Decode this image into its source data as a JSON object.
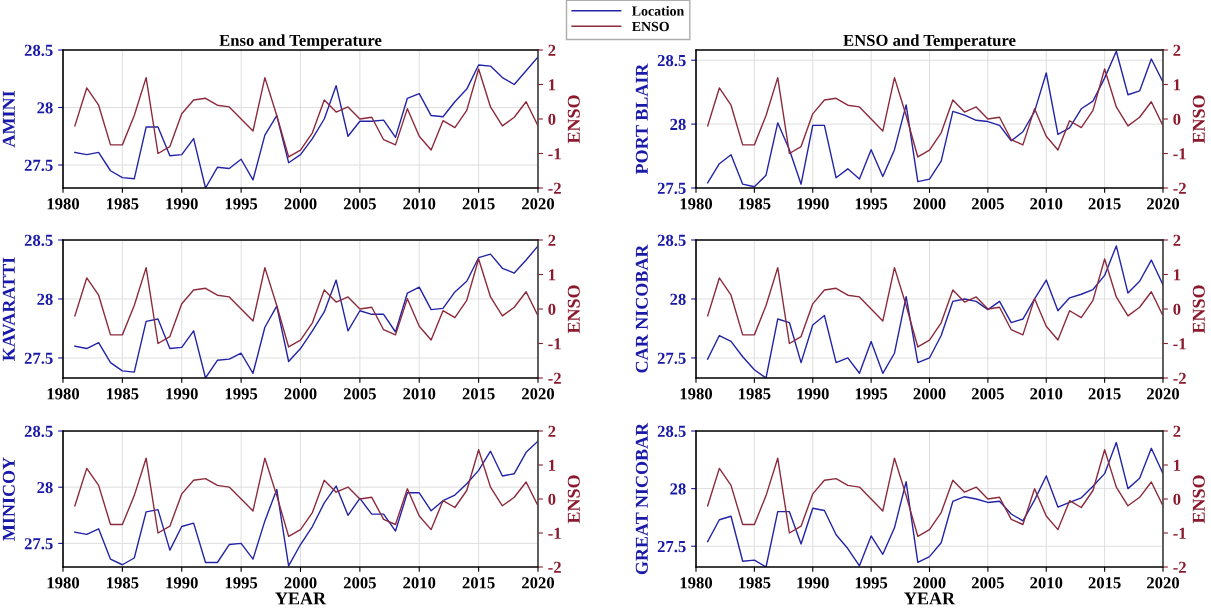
{
  "chart_data": [
    {
      "type": "line",
      "title": "Enso and Temperature",
      "ylabel": "AMINI",
      "y2label": "ENSO",
      "legend": "top right",
      "grid": true,
      "x": [
        1981,
        1982,
        1983,
        1984,
        1985,
        1986,
        1987,
        1988,
        1989,
        1990,
        1991,
        1992,
        1993,
        1994,
        1995,
        1996,
        1997,
        1998,
        1999,
        2000,
        2001,
        2002,
        2003,
        2004,
        2005,
        2006,
        2007,
        2008,
        2009,
        2010,
        2011,
        2012,
        2013,
        2014,
        2015,
        2016,
        2017,
        2018,
        2019,
        2020
      ],
      "xlim": [
        1980,
        2020
      ],
      "xticks": [
        1980,
        1985,
        1990,
        1995,
        2000,
        2005,
        2010,
        2015,
        2020
      ],
      "ylim": [
        27.3,
        28.5
      ],
      "yticks": [
        27.5,
        28,
        28.5
      ],
      "y2lim": [
        -2,
        2
      ],
      "y2ticks": [
        -2,
        -1,
        0,
        1,
        2
      ],
      "series": [
        {
          "name": "Location",
          "color": "#2323a8",
          "values": [
            27.61,
            27.59,
            27.61,
            27.45,
            27.39,
            27.38,
            27.83,
            27.83,
            27.58,
            27.59,
            27.73,
            27.3,
            27.48,
            27.47,
            27.55,
            27.37,
            27.76,
            27.93,
            27.52,
            27.59,
            27.73,
            27.9,
            28.19,
            27.75,
            27.88,
            27.88,
            27.89,
            27.74,
            28.08,
            28.12,
            27.93,
            27.92,
            28.05,
            28.16,
            28.37,
            28.36,
            28.26,
            28.2,
            28.32,
            28.44
          ]
        },
        {
          "name": "ENSO",
          "color": "#8b2a3c",
          "axis": "y2",
          "values": [
            -0.2,
            0.9,
            0.4,
            -0.75,
            -0.75,
            0.1,
            1.2,
            -1.0,
            -0.8,
            0.15,
            0.55,
            0.6,
            0.4,
            0.35,
            0.0,
            -0.35,
            1.2,
            0.1,
            -1.1,
            -0.9,
            -0.4,
            0.55,
            0.2,
            0.35,
            0.0,
            0.05,
            -0.6,
            -0.75,
            0.3,
            -0.5,
            -0.9,
            -0.05,
            -0.25,
            0.25,
            1.45,
            0.35,
            -0.2,
            0.05,
            0.5,
            -0.2
          ]
        }
      ]
    },
    {
      "type": "line",
      "title": "ENSO and Temperature",
      "ylabel": "PORT BLAIR",
      "y2label": "ENSO",
      "grid": true,
      "x": [
        1981,
        1982,
        1983,
        1984,
        1985,
        1986,
        1987,
        1988,
        1989,
        1990,
        1991,
        1992,
        1993,
        1994,
        1995,
        1996,
        1997,
        1998,
        1999,
        2000,
        2001,
        2002,
        2003,
        2004,
        2005,
        2006,
        2007,
        2008,
        2009,
        2010,
        2011,
        2012,
        2013,
        2014,
        2015,
        2016,
        2017,
        2018,
        2019,
        2020
      ],
      "xlim": [
        1980,
        2020
      ],
      "xticks": [
        1980,
        1985,
        1990,
        1995,
        2000,
        2005,
        2010,
        2015,
        2020
      ],
      "ylim": [
        27.5,
        28.58
      ],
      "yticks": [
        27.5,
        28,
        28.5
      ],
      "y2lim": [
        -2,
        2
      ],
      "y2ticks": [
        -2,
        -1,
        0,
        1,
        2
      ],
      "series": [
        {
          "color": "#2323a8",
          "values": [
            27.54,
            27.69,
            27.76,
            27.53,
            27.51,
            27.6,
            28.01,
            27.8,
            27.53,
            27.99,
            27.99,
            27.58,
            27.65,
            27.57,
            27.8,
            27.59,
            27.8,
            28.15,
            27.55,
            27.57,
            27.71,
            28.1,
            28.07,
            28.03,
            28.02,
            27.99,
            27.87,
            27.94,
            28.1,
            28.4,
            27.92,
            27.97,
            28.12,
            28.18,
            28.36,
            28.57,
            28.23,
            28.26,
            28.51,
            28.33
          ]
        },
        {
          "color": "#8b2a3c",
          "axis": "y2",
          "values": [
            -0.2,
            0.9,
            0.4,
            -0.75,
            -0.75,
            0.1,
            1.2,
            -1.0,
            -0.8,
            0.15,
            0.55,
            0.6,
            0.4,
            0.35,
            0.0,
            -0.35,
            1.2,
            0.1,
            -1.1,
            -0.9,
            -0.4,
            0.55,
            0.2,
            0.35,
            0.0,
            0.05,
            -0.6,
            -0.75,
            0.3,
            -0.5,
            -0.9,
            -0.05,
            -0.25,
            0.25,
            1.45,
            0.35,
            -0.2,
            0.05,
            0.5,
            -0.2
          ]
        }
      ]
    },
    {
      "type": "line",
      "ylabel": "KAVARATTI",
      "y2label": "ENSO",
      "grid": true,
      "x": [
        1981,
        1982,
        1983,
        1984,
        1985,
        1986,
        1987,
        1988,
        1989,
        1990,
        1991,
        1992,
        1993,
        1994,
        1995,
        1996,
        1997,
        1998,
        1999,
        2000,
        2001,
        2002,
        2003,
        2004,
        2005,
        2006,
        2007,
        2008,
        2009,
        2010,
        2011,
        2012,
        2013,
        2014,
        2015,
        2016,
        2017,
        2018,
        2019,
        2020
      ],
      "xlim": [
        1980,
        2020
      ],
      "xticks": [
        1980,
        1985,
        1990,
        1995,
        2000,
        2005,
        2010,
        2015,
        2020
      ],
      "ylim": [
        27.33,
        28.5
      ],
      "yticks": [
        27.5,
        28,
        28.5
      ],
      "y2lim": [
        -2,
        2
      ],
      "y2ticks": [
        -2,
        -1,
        0,
        1,
        2
      ],
      "series": [
        {
          "color": "#2323a8",
          "values": [
            27.6,
            27.58,
            27.63,
            27.46,
            27.39,
            27.38,
            27.81,
            27.83,
            27.58,
            27.59,
            27.73,
            27.33,
            27.48,
            27.49,
            27.54,
            27.37,
            27.76,
            27.94,
            27.47,
            27.58,
            27.73,
            27.89,
            28.16,
            27.73,
            27.9,
            27.87,
            27.87,
            27.72,
            28.05,
            28.1,
            27.91,
            27.92,
            28.06,
            28.15,
            28.35,
            28.38,
            28.26,
            28.22,
            28.33,
            28.45
          ]
        },
        {
          "color": "#8b2a3c",
          "axis": "y2",
          "values": [
            -0.2,
            0.9,
            0.4,
            -0.75,
            -0.75,
            0.1,
            1.2,
            -1.0,
            -0.8,
            0.15,
            0.55,
            0.6,
            0.4,
            0.35,
            0.0,
            -0.35,
            1.2,
            0.1,
            -1.1,
            -0.9,
            -0.4,
            0.55,
            0.2,
            0.35,
            0.0,
            0.05,
            -0.6,
            -0.75,
            0.3,
            -0.5,
            -0.9,
            -0.05,
            -0.25,
            0.25,
            1.45,
            0.35,
            -0.2,
            0.05,
            0.5,
            -0.2
          ]
        }
      ]
    },
    {
      "type": "line",
      "ylabel": "CAR NICOBAR",
      "y2label": "ENSO",
      "grid": true,
      "x": [
        1981,
        1982,
        1983,
        1984,
        1985,
        1986,
        1987,
        1988,
        1989,
        1990,
        1991,
        1992,
        1993,
        1994,
        1995,
        1996,
        1997,
        1998,
        1999,
        2000,
        2001,
        2002,
        2003,
        2004,
        2005,
        2006,
        2007,
        2008,
        2009,
        2010,
        2011,
        2012,
        2013,
        2014,
        2015,
        2016,
        2017,
        2018,
        2019,
        2020
      ],
      "xlim": [
        1980,
        2020
      ],
      "xticks": [
        1980,
        1985,
        1990,
        1995,
        2000,
        2005,
        2010,
        2015,
        2020
      ],
      "ylim": [
        27.33,
        28.5
      ],
      "yticks": [
        27.5,
        28,
        28.5
      ],
      "y2lim": [
        -2,
        2
      ],
      "y2ticks": [
        -2,
        -1,
        0,
        1,
        2
      ],
      "series": [
        {
          "color": "#2323a8",
          "values": [
            27.49,
            27.69,
            27.64,
            27.51,
            27.4,
            27.33,
            27.83,
            27.8,
            27.46,
            27.78,
            27.86,
            27.46,
            27.5,
            27.37,
            27.64,
            27.37,
            27.54,
            28.02,
            27.46,
            27.5,
            27.69,
            27.98,
            28.0,
            27.98,
            27.91,
            27.98,
            27.8,
            27.83,
            28.0,
            28.16,
            27.9,
            28.01,
            28.04,
            28.08,
            28.2,
            28.45,
            28.05,
            28.15,
            28.33,
            28.12
          ]
        },
        {
          "color": "#8b2a3c",
          "axis": "y2",
          "values": [
            -0.2,
            0.9,
            0.4,
            -0.75,
            -0.75,
            0.1,
            1.2,
            -1.0,
            -0.8,
            0.15,
            0.55,
            0.6,
            0.4,
            0.35,
            0.0,
            -0.35,
            1.2,
            0.1,
            -1.1,
            -0.9,
            -0.4,
            0.55,
            0.2,
            0.35,
            0.0,
            0.05,
            -0.6,
            -0.75,
            0.3,
            -0.5,
            -0.9,
            -0.05,
            -0.25,
            0.25,
            1.45,
            0.35,
            -0.2,
            0.05,
            0.5,
            -0.2
          ]
        }
      ]
    },
    {
      "type": "line",
      "ylabel": "MINICOY",
      "y2label": "ENSO",
      "xlabel": "YEAR",
      "grid": true,
      "x": [
        1981,
        1982,
        1983,
        1984,
        1985,
        1986,
        1987,
        1988,
        1989,
        1990,
        1991,
        1992,
        1993,
        1994,
        1995,
        1996,
        1997,
        1998,
        1999,
        2000,
        2001,
        2002,
        2003,
        2004,
        2005,
        2006,
        2007,
        2008,
        2009,
        2010,
        2011,
        2012,
        2013,
        2014,
        2015,
        2016,
        2017,
        2018,
        2019,
        2020
      ],
      "xlim": [
        1980,
        2020
      ],
      "xticks": [
        1980,
        1985,
        1990,
        1995,
        2000,
        2005,
        2010,
        2015,
        2020
      ],
      "ylim": [
        27.29,
        28.5
      ],
      "yticks": [
        27.5,
        28,
        28.5
      ],
      "y2lim": [
        -2,
        2
      ],
      "y2ticks": [
        -2,
        -1,
        0,
        1,
        2
      ],
      "series": [
        {
          "color": "#2323a8",
          "values": [
            27.6,
            27.58,
            27.63,
            27.36,
            27.31,
            27.37,
            27.78,
            27.8,
            27.44,
            27.65,
            27.68,
            27.33,
            27.33,
            27.49,
            27.5,
            27.36,
            27.7,
            27.98,
            27.3,
            27.49,
            27.65,
            27.86,
            28.01,
            27.75,
            27.9,
            27.76,
            27.76,
            27.61,
            27.95,
            27.95,
            27.79,
            27.88,
            27.93,
            28.03,
            28.15,
            28.32,
            28.1,
            28.12,
            28.31,
            28.41
          ]
        },
        {
          "color": "#8b2a3c",
          "axis": "y2",
          "values": [
            -0.2,
            0.9,
            0.4,
            -0.75,
            -0.75,
            0.1,
            1.2,
            -1.0,
            -0.8,
            0.15,
            0.55,
            0.6,
            0.4,
            0.35,
            0.0,
            -0.35,
            1.2,
            0.1,
            -1.1,
            -0.9,
            -0.4,
            0.55,
            0.2,
            0.35,
            0.0,
            0.05,
            -0.6,
            -0.75,
            0.3,
            -0.5,
            -0.9,
            -0.05,
            -0.25,
            0.25,
            1.45,
            0.35,
            -0.2,
            0.05,
            0.5,
            -0.2
          ]
        }
      ]
    },
    {
      "type": "line",
      "ylabel": "GREAT NICOBAR",
      "y2label": "ENSO",
      "xlabel": "YEAR",
      "grid": true,
      "x": [
        1981,
        1982,
        1983,
        1984,
        1985,
        1986,
        1987,
        1988,
        1989,
        1990,
        1991,
        1992,
        1993,
        1994,
        1995,
        1996,
        1997,
        1998,
        1999,
        2000,
        2001,
        2002,
        2003,
        2004,
        2005,
        2006,
        2007,
        2008,
        2009,
        2010,
        2011,
        2012,
        2013,
        2014,
        2015,
        2016,
        2017,
        2018,
        2019,
        2020
      ],
      "xlim": [
        1980,
        2020
      ],
      "xticks": [
        1980,
        1985,
        1990,
        1995,
        2000,
        2005,
        2010,
        2015,
        2020
      ],
      "ylim": [
        27.32,
        28.5
      ],
      "yticks": [
        27.5,
        28,
        28.5
      ],
      "y2lim": [
        -2,
        2
      ],
      "y2ticks": [
        -2,
        -1,
        0,
        1,
        2
      ],
      "series": [
        {
          "color": "#2323a8",
          "values": [
            27.54,
            27.73,
            27.76,
            27.37,
            27.38,
            27.32,
            27.8,
            27.8,
            27.52,
            27.83,
            27.81,
            27.6,
            27.48,
            27.33,
            27.59,
            27.43,
            27.66,
            28.06,
            27.36,
            27.41,
            27.53,
            27.89,
            27.93,
            27.91,
            27.88,
            27.89,
            27.78,
            27.72,
            27.9,
            28.11,
            27.84,
            27.88,
            27.92,
            28.02,
            28.13,
            28.4,
            28.0,
            28.09,
            28.35,
            28.13
          ]
        },
        {
          "color": "#8b2a3c",
          "axis": "y2",
          "values": [
            -0.2,
            0.9,
            0.4,
            -0.75,
            -0.75,
            0.1,
            1.2,
            -1.0,
            -0.8,
            0.15,
            0.55,
            0.6,
            0.4,
            0.35,
            0.0,
            -0.35,
            1.2,
            0.1,
            -1.1,
            -0.9,
            -0.4,
            0.55,
            0.2,
            0.35,
            0.0,
            0.05,
            -0.6,
            -0.75,
            0.3,
            -0.5,
            -0.9,
            -0.05,
            -0.25,
            0.25,
            1.45,
            0.35,
            -0.2,
            0.05,
            0.5,
            -0.2
          ]
        }
      ]
    }
  ]
}
